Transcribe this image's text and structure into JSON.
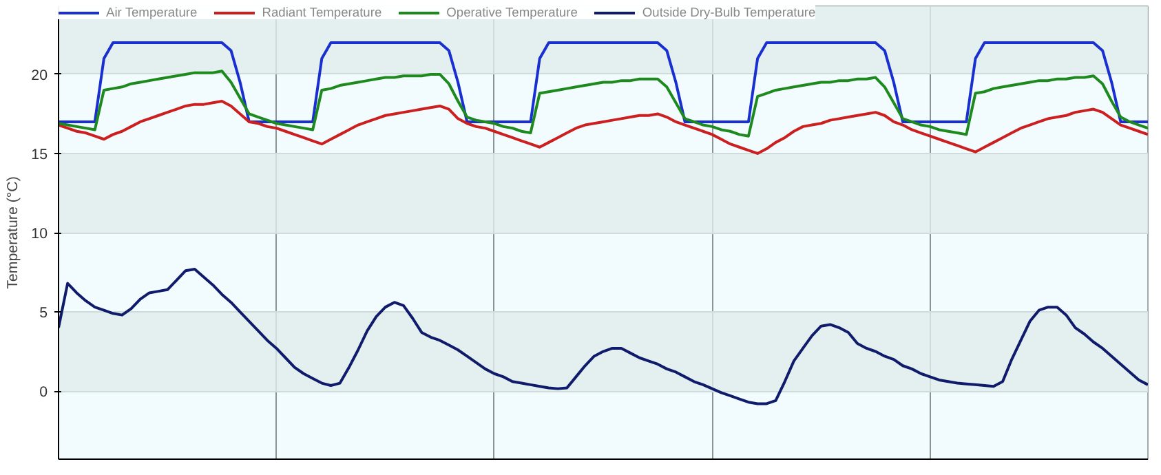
{
  "chart_data": {
    "type": "line",
    "ylabel": "Temperature (°C)",
    "ylim": [
      -4.3,
      24.3
    ],
    "yticks": [
      0,
      5,
      10,
      15,
      20
    ],
    "grid": true,
    "legend": "top",
    "tick_labels": "y",
    "line_style": "solid",
    "categories": [
      null,
      null,
      null,
      null,
      null,
      null,
      null,
      null,
      null,
      null,
      null,
      null,
      null,
      null,
      null,
      null,
      null,
      null,
      null,
      null,
      null,
      null,
      null,
      null,
      null,
      null,
      null,
      null,
      null,
      null,
      null,
      null,
      null,
      null,
      null,
      null,
      null,
      null,
      null,
      null,
      null,
      null,
      null,
      null,
      null,
      null,
      null,
      null,
      null,
      null,
      null,
      null,
      null,
      null,
      null,
      null,
      null,
      null,
      null,
      null,
      null,
      null,
      null,
      null,
      null,
      null,
      null,
      null,
      null,
      null,
      null,
      null,
      null,
      null,
      null,
      null,
      null,
      null,
      null,
      null,
      null,
      null,
      null,
      null,
      null,
      null,
      null,
      null,
      null,
      null,
      null,
      null,
      null,
      null,
      null,
      null,
      null,
      null,
      null,
      null,
      null,
      null,
      null,
      null,
      null,
      null,
      null,
      null,
      null,
      null,
      null,
      null,
      null,
      null,
      null,
      null,
      null,
      null,
      null,
      null,
      null
    ],
    "series": [
      {
        "name": "Air Temperature",
        "color": "#1a2fd0",
        "values": [
          17,
          17,
          17,
          17,
          17,
          21,
          22,
          22,
          22,
          22,
          22,
          22,
          22,
          22,
          22,
          22,
          22,
          22,
          22,
          21.5,
          19.5,
          17,
          17,
          17,
          17,
          17,
          17,
          17,
          17,
          21,
          22,
          22,
          22,
          22,
          22,
          22,
          22,
          22,
          22,
          22,
          22,
          22,
          22,
          21.5,
          19.5,
          17,
          17,
          17,
          17,
          17,
          17,
          17,
          17,
          21,
          22,
          22,
          22,
          22,
          22,
          22,
          22,
          22,
          22,
          22,
          22,
          22,
          22,
          21.5,
          19.5,
          17,
          17,
          17,
          17,
          17,
          17,
          17,
          17,
          21,
          22,
          22,
          22,
          22,
          22,
          22,
          22,
          22,
          22,
          22,
          22,
          22,
          22,
          21.5,
          19.5,
          17,
          17,
          17,
          17,
          17,
          17,
          17,
          17,
          21,
          22,
          22,
          22,
          22,
          22,
          22,
          22,
          22,
          22,
          22,
          22,
          22,
          22,
          21.5,
          19.5,
          17,
          17,
          17,
          17
        ]
      },
      {
        "name": "Radiant Temperature",
        "color": "#cc1f1f",
        "values": [
          16.8,
          16.6,
          16.4,
          16.3,
          16.1,
          15.9,
          16.2,
          16.4,
          16.7,
          17.0,
          17.2,
          17.4,
          17.6,
          17.8,
          18.0,
          18.1,
          18.1,
          18.2,
          18.3,
          18.0,
          17.5,
          17.0,
          16.9,
          16.7,
          16.6,
          16.4,
          16.2,
          16.0,
          15.8,
          15.6,
          15.9,
          16.2,
          16.5,
          16.8,
          17.0,
          17.2,
          17.4,
          17.5,
          17.6,
          17.7,
          17.8,
          17.9,
          18.0,
          17.8,
          17.2,
          16.9,
          16.7,
          16.6,
          16.4,
          16.2,
          16.0,
          15.8,
          15.6,
          15.4,
          15.7,
          16.0,
          16.3,
          16.6,
          16.8,
          16.9,
          17.0,
          17.1,
          17.2,
          17.3,
          17.4,
          17.4,
          17.5,
          17.3,
          17.0,
          16.8,
          16.6,
          16.4,
          16.2,
          15.9,
          15.6,
          15.4,
          15.2,
          15.0,
          15.3,
          15.7,
          16.0,
          16.4,
          16.7,
          16.8,
          16.9,
          17.1,
          17.2,
          17.3,
          17.4,
          17.5,
          17.6,
          17.4,
          17.0,
          16.8,
          16.5,
          16.3,
          16.1,
          15.9,
          15.7,
          15.5,
          15.3,
          15.1,
          15.4,
          15.7,
          16.0,
          16.3,
          16.6,
          16.8,
          17.0,
          17.2,
          17.3,
          17.4,
          17.6,
          17.7,
          17.8,
          17.6,
          17.2,
          16.8,
          16.6,
          16.4,
          16.2
        ]
      },
      {
        "name": "Operative Temperature",
        "color": "#1e8a1e",
        "values": [
          16.9,
          16.8,
          16.7,
          16.6,
          16.5,
          19.0,
          19.1,
          19.2,
          19.4,
          19.5,
          19.6,
          19.7,
          19.8,
          19.9,
          20.0,
          20.1,
          20.1,
          20.1,
          20.2,
          19.5,
          18.5,
          17.5,
          17.3,
          17.1,
          16.9,
          16.8,
          16.7,
          16.6,
          16.5,
          19.0,
          19.1,
          19.3,
          19.4,
          19.5,
          19.6,
          19.7,
          19.8,
          19.8,
          19.9,
          19.9,
          19.9,
          20.0,
          20.0,
          19.4,
          18.3,
          17.3,
          17.1,
          17.0,
          16.9,
          16.7,
          16.6,
          16.4,
          16.3,
          18.8,
          18.9,
          19.0,
          19.1,
          19.2,
          19.3,
          19.4,
          19.5,
          19.5,
          19.6,
          19.6,
          19.7,
          19.7,
          19.7,
          19.2,
          18.2,
          17.2,
          17.0,
          16.8,
          16.7,
          16.5,
          16.4,
          16.2,
          16.1,
          18.6,
          18.8,
          19.0,
          19.1,
          19.2,
          19.3,
          19.4,
          19.5,
          19.5,
          19.6,
          19.6,
          19.7,
          19.7,
          19.8,
          19.2,
          18.2,
          17.2,
          17.0,
          16.8,
          16.7,
          16.5,
          16.4,
          16.3,
          16.2,
          18.8,
          18.9,
          19.1,
          19.2,
          19.3,
          19.4,
          19.5,
          19.6,
          19.6,
          19.7,
          19.7,
          19.8,
          19.8,
          19.9,
          19.4,
          18.3,
          17.3,
          17.0,
          16.8,
          16.6
        ]
      },
      {
        "name": "Outside Dry-Bulb Temperature",
        "color": "#101c6b",
        "values": [
          4.0,
          6.8,
          6.2,
          5.7,
          5.3,
          5.1,
          4.9,
          4.8,
          5.2,
          5.8,
          6.2,
          6.3,
          6.4,
          7.0,
          7.6,
          7.7,
          7.2,
          6.7,
          6.1,
          5.6,
          5.0,
          4.4,
          3.8,
          3.2,
          2.7,
          2.1,
          1.5,
          1.1,
          0.8,
          0.5,
          0.35,
          0.5,
          1.5,
          2.6,
          3.8,
          4.7,
          5.3,
          5.6,
          5.4,
          4.6,
          3.7,
          3.4,
          3.2,
          2.9,
          2.6,
          2.2,
          1.8,
          1.4,
          1.1,
          0.9,
          0.6,
          0.5,
          0.4,
          0.3,
          0.2,
          0.15,
          0.2,
          0.9,
          1.6,
          2.2,
          2.5,
          2.7,
          2.7,
          2.4,
          2.1,
          1.9,
          1.7,
          1.4,
          1.2,
          0.9,
          0.6,
          0.4,
          0.15,
          -0.1,
          -0.3,
          -0.5,
          -0.7,
          -0.8,
          -0.8,
          -0.6,
          0.6,
          1.9,
          2.7,
          3.5,
          4.1,
          4.2,
          4.0,
          3.7,
          3.0,
          2.7,
          2.5,
          2.2,
          2.0,
          1.6,
          1.4,
          1.1,
          0.9,
          0.7,
          0.6,
          0.5,
          0.45,
          0.4,
          0.35,
          0.3,
          0.6,
          2.0,
          3.2,
          4.4,
          5.1,
          5.3,
          5.3,
          4.8,
          4.0,
          3.6,
          3.1,
          2.7,
          2.2,
          1.7,
          1.2,
          0.7,
          0.4
        ]
      }
    ]
  }
}
